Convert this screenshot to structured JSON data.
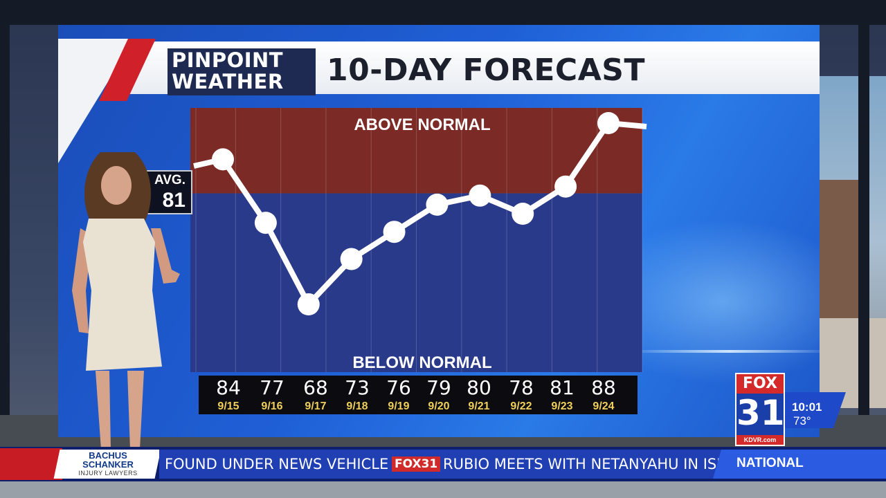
{
  "graphic": {
    "logo_line1": "PINPOINT",
    "logo_line2": "WEATHER",
    "title": "10-DAY FORECAST",
    "avg_label": "AVG.",
    "avg_value": "81"
  },
  "chart_data": {
    "type": "line",
    "region_labels": {
      "above": "ABOVE NORMAL",
      "below": "BELOW NORMAL"
    },
    "normal": 81,
    "categories": [
      "9/15",
      "9/16",
      "9/17",
      "9/18",
      "9/19",
      "9/20",
      "9/21",
      "9/22",
      "9/23",
      "9/24"
    ],
    "values": [
      84,
      77,
      68,
      73,
      76,
      79,
      80,
      78,
      81,
      88
    ],
    "colors": {
      "above": "#7b2a26",
      "below": "#2a3a8a",
      "line": "#ffffff"
    }
  },
  "days": [
    {
      "temp": "84",
      "date": "9/15"
    },
    {
      "temp": "77",
      "date": "9/16"
    },
    {
      "temp": "68",
      "date": "9/17"
    },
    {
      "temp": "73",
      "date": "9/18"
    },
    {
      "temp": "76",
      "date": "9/19"
    },
    {
      "temp": "79",
      "date": "9/20"
    },
    {
      "temp": "80",
      "date": "9/21"
    },
    {
      "temp": "78",
      "date": "9/22"
    },
    {
      "temp": "81",
      "date": "9/23"
    },
    {
      "temp": "88",
      "date": "9/24"
    }
  ],
  "station": {
    "brand": "FOX",
    "channel": "31",
    "url": "KDVR.com",
    "time": "10:01",
    "temp": "73°"
  },
  "ticker": {
    "sponsor_line1": "BACHUS",
    "sponsor_line2": "SCHANKER",
    "sponsor_line3": "INJURY LAWYERS",
    "headline1": "E FOUND UNDER NEWS VEHICLE",
    "brand": "FOX31",
    "headline2": "RUBIO MEETS WITH NETANYAHU IN ISR",
    "category": "NATIONAL"
  }
}
